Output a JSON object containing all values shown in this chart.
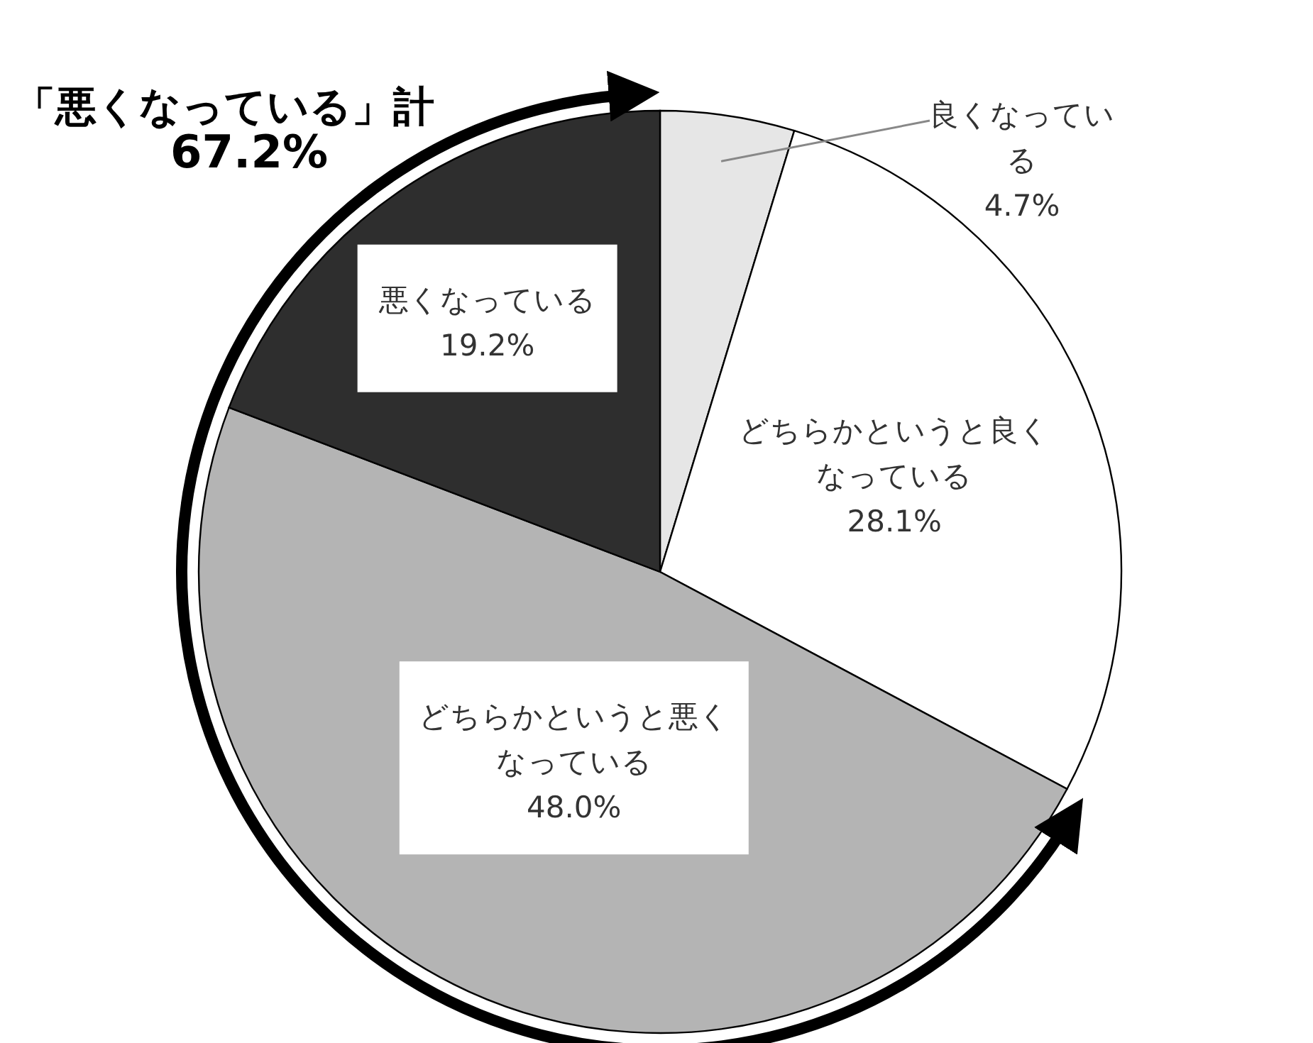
{
  "chart_data": {
    "type": "pie",
    "categories": [
      "良くなっている",
      "どちらかというと良くなっている",
      "どちらかというと悪くなっている",
      "悪くなっている"
    ],
    "values": [
      4.7,
      28.1,
      48.0,
      19.2
    ],
    "value_labels": [
      "4.7%",
      "28.1%",
      "48.0%",
      "19.2%"
    ],
    "colors": [
      "#e6e6e6",
      "#ffffff",
      "#b4b4b4",
      "#2e2e2e"
    ],
    "annotations": [
      "「悪くなっている」計",
      "67.2%"
    ]
  }
}
